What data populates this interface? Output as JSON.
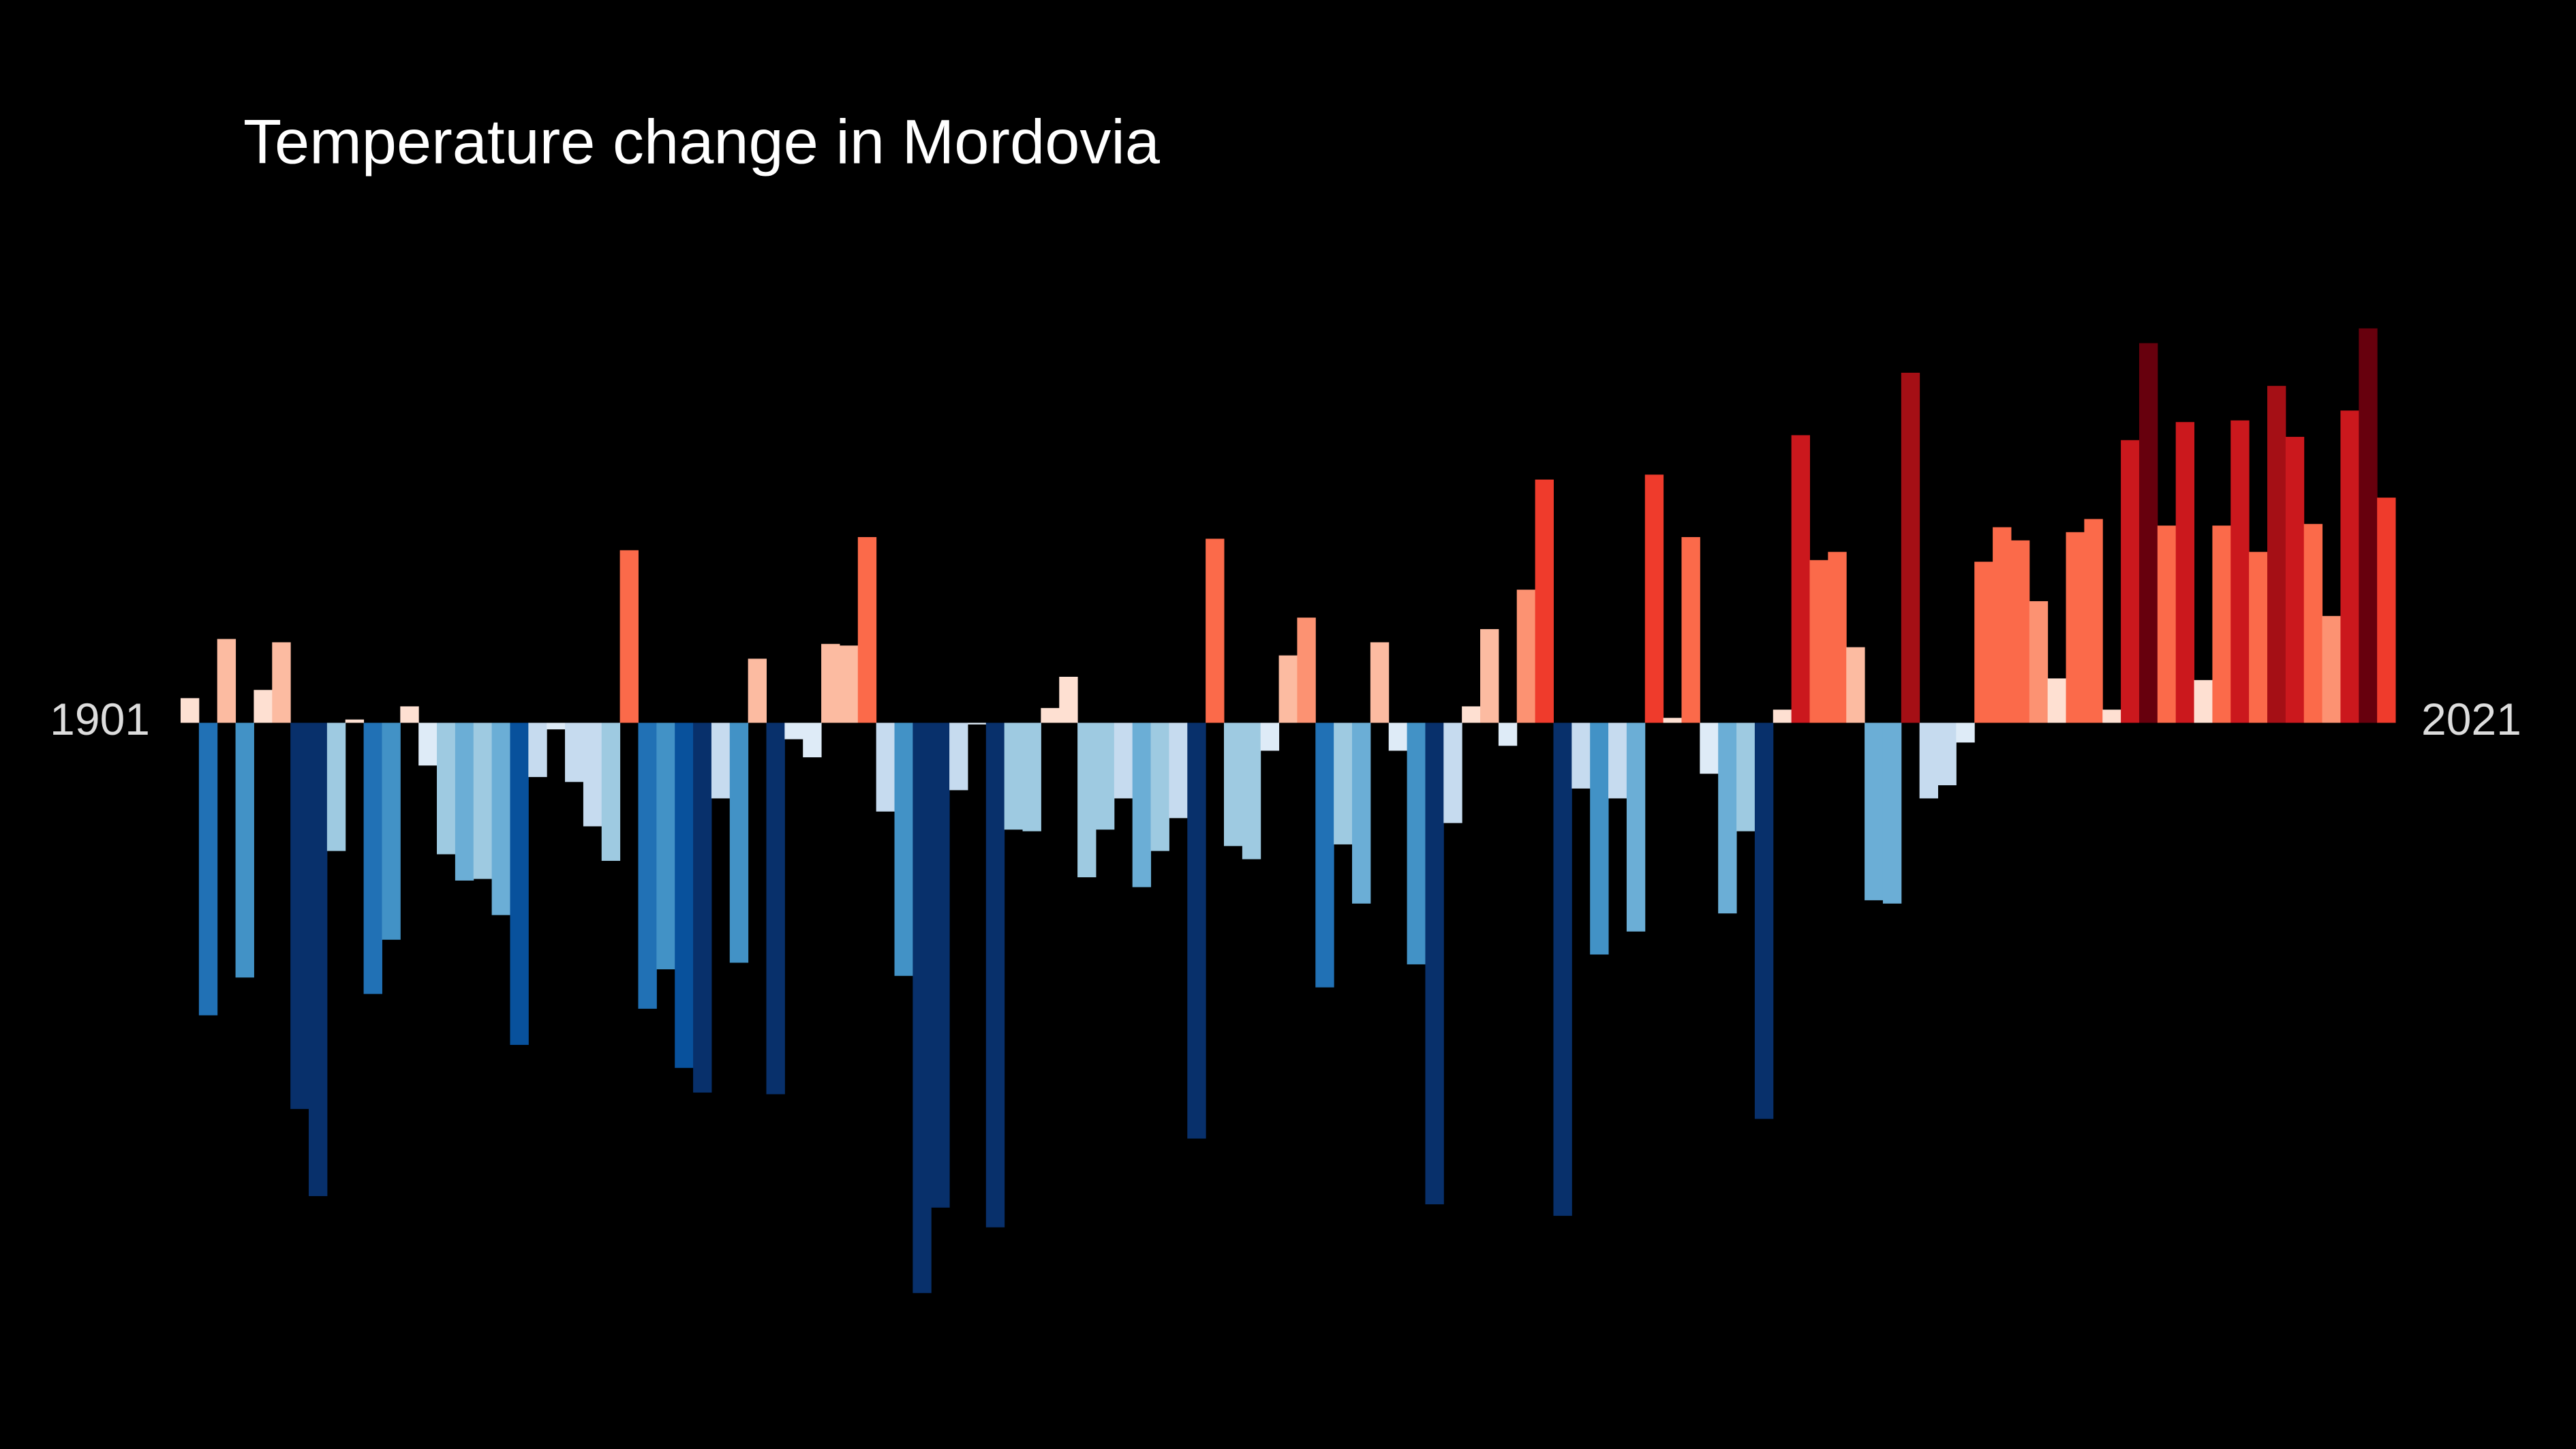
{
  "chart_data": {
    "type": "bar",
    "title": "Temperature change in Mordovia",
    "x": [
      1901,
      1902,
      1903,
      1904,
      1905,
      1906,
      1907,
      1908,
      1909,
      1910,
      1911,
      1912,
      1913,
      1914,
      1915,
      1916,
      1917,
      1918,
      1919,
      1920,
      1921,
      1922,
      1923,
      1924,
      1925,
      1926,
      1927,
      1928,
      1929,
      1930,
      1931,
      1932,
      1933,
      1934,
      1935,
      1936,
      1937,
      1938,
      1939,
      1940,
      1941,
      1942,
      1943,
      1944,
      1945,
      1946,
      1947,
      1948,
      1949,
      1950,
      1951,
      1952,
      1953,
      1954,
      1955,
      1956,
      1957,
      1958,
      1959,
      1960,
      1961,
      1962,
      1963,
      1964,
      1965,
      1966,
      1967,
      1968,
      1969,
      1970,
      1971,
      1972,
      1973,
      1974,
      1975,
      1976,
      1977,
      1978,
      1979,
      1980,
      1981,
      1982,
      1983,
      1984,
      1985,
      1986,
      1987,
      1988,
      1989,
      1990,
      1991,
      1992,
      1993,
      1994,
      1995,
      1996,
      1997,
      1998,
      1999,
      2000,
      2001,
      2002,
      2003,
      2004,
      2005,
      2006,
      2007,
      2008,
      2009,
      2010,
      2011,
      2012,
      2013,
      2014,
      2015,
      2016,
      2017,
      2018,
      2019,
      2020,
      2021
    ],
    "values": [
      0.15,
      -1.78,
      0.51,
      -1.55,
      0.2,
      0.49,
      -2.35,
      -2.88,
      -0.78,
      0.02,
      -1.65,
      -1.32,
      0.1,
      -0.26,
      -0.8,
      -0.96,
      -0.95,
      -1.17,
      -1.96,
      -0.33,
      -0.04,
      -0.36,
      -0.63,
      -0.84,
      1.05,
      -1.74,
      -1.5,
      -2.1,
      -2.25,
      -0.46,
      -1.46,
      0.39,
      -2.26,
      -0.1,
      -0.21,
      0.48,
      0.47,
      1.13,
      -0.54,
      -1.54,
      -3.47,
      -2.95,
      -0.41,
      -0.01,
      -3.07,
      -0.65,
      -0.66,
      0.09,
      0.28,
      -0.94,
      -0.65,
      -0.46,
      -1.0,
      -0.78,
      -0.58,
      -2.53,
      1.12,
      -0.75,
      -0.83,
      -0.17,
      0.41,
      0.64,
      -1.61,
      -0.74,
      -1.1,
      0.49,
      -0.17,
      -1.47,
      -2.93,
      -0.61,
      0.1,
      0.57,
      -0.14,
      0.81,
      1.48,
      -3.0,
      -0.4,
      -1.41,
      -0.46,
      -1.27,
      1.51,
      0.03,
      1.13,
      -0.31,
      -1.16,
      -0.66,
      -2.41,
      0.08,
      1.75,
      0.99,
      1.04,
      0.46,
      -1.08,
      -1.1,
      2.13,
      -0.46,
      -0.38,
      -0.12,
      0.98,
      1.19,
      1.11,
      0.74,
      0.27,
      1.16,
      1.24,
      0.08,
      1.72,
      2.31,
      1.2,
      1.83,
      0.26,
      1.2,
      1.84,
      1.04,
      2.05,
      1.74,
      1.21,
      0.65,
      1.9,
      2.4,
      1.37
    ],
    "ylim": [
      -4,
      4
    ],
    "colors": {
      "negative": [
        "#deebf7",
        "#c6dbef",
        "#9ecae1",
        "#6baed6",
        "#4292c6",
        "#2171b5",
        "#08519c",
        "#08306b"
      ],
      "positive": [
        "#fee0d2",
        "#fcbba1",
        "#fc9272",
        "#fb6a4a",
        "#ef3b2c",
        "#cb181d",
        "#a50f15",
        "#67000d"
      ],
      "step": 0.32
    }
  }
}
